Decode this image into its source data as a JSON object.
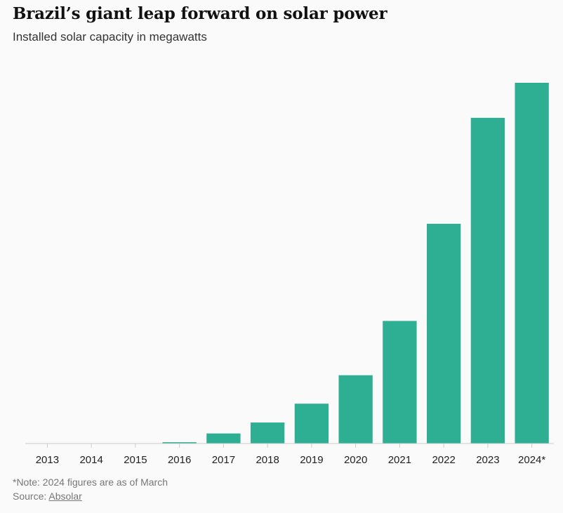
{
  "header": {
    "title": "Brazil’s giant leap forward on solar power",
    "subtitle": "Installed solar capacity in megawatts"
  },
  "footer": {
    "note": "*Note: 2024 figures are as of March",
    "source_prefix": "Source: ",
    "source_link": "Absolar"
  },
  "colors": {
    "bar": "#2eaf93",
    "axis": "#cccccc"
  },
  "chart_data": {
    "type": "bar",
    "title": "Brazil’s giant leap forward on solar power",
    "subtitle": "Installed solar capacity in megawatts",
    "xlabel": "",
    "ylabel": "",
    "categories": [
      "2013",
      "2014",
      "2015",
      "2016",
      "2017",
      "2018",
      "2019",
      "2020",
      "2021",
      "2022",
      "2023",
      "2024*"
    ],
    "values": [
      5,
      20,
      40,
      150,
      1150,
      2400,
      4550,
      7800,
      14000,
      25100,
      37200,
      41200
    ],
    "ylim": [
      0,
      42000
    ],
    "grid": false,
    "legend": "none"
  }
}
